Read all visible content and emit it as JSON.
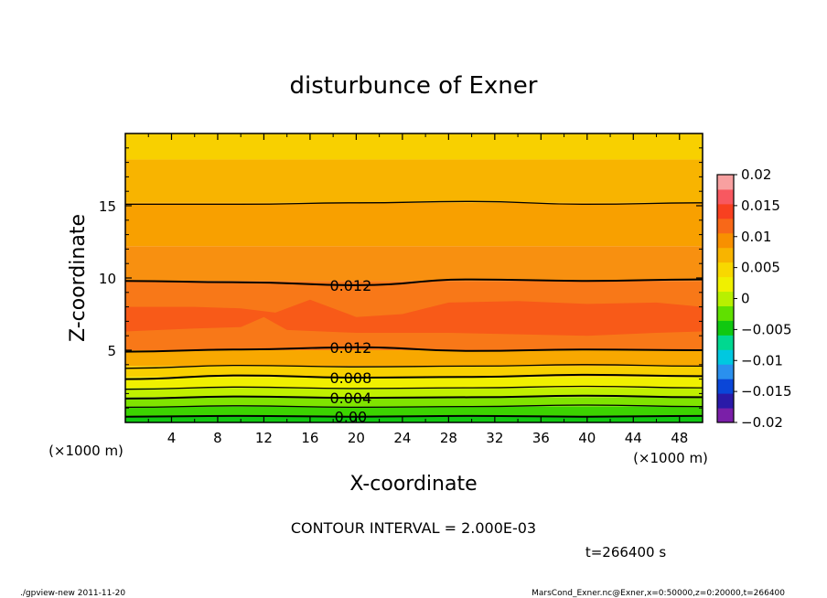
{
  "chart_data": {
    "type": "heatmap",
    "subtype": "filled-contour",
    "title": "disturbunce of Exner",
    "xlabel": "X-coordinate",
    "ylabel": "Z-coordinate",
    "x_unit_note": "(×1000 m)",
    "y_unit_note": "(×1000 m)",
    "xlim": [
      0,
      50
    ],
    "ylim": [
      0,
      20
    ],
    "x_ticks": [
      4,
      8,
      12,
      16,
      20,
      24,
      28,
      32,
      36,
      40,
      44,
      48
    ],
    "y_ticks": [
      5,
      10,
      15
    ],
    "colorbar": {
      "min": -0.02,
      "max": 0.02,
      "tick_values": [
        0.02,
        0.015,
        0.01,
        0.005,
        0,
        -0.005,
        -0.01,
        -0.015,
        -0.02
      ],
      "tick_labels": [
        "0.02",
        "0.015",
        "0.01",
        "0.005",
        "0",
        "−0.005",
        "−0.01",
        "−0.015",
        "−0.02"
      ],
      "placement": "right",
      "colors": [
        "#7a1fa8",
        "#2a1aa8",
        "#0a46d8",
        "#2a90ee",
        "#00c8e0",
        "#00d890",
        "#10c810",
        "#60e000",
        "#b8f000",
        "#f0f000",
        "#f8d800",
        "#f8b400",
        "#f89000",
        "#f86818",
        "#f84020",
        "#f85860",
        "#f8a0a0"
      ]
    },
    "contour_interval_text": "CONTOUR INTERVAL = 2.000E-03",
    "time_text": "t=266400 s",
    "contours": [
      {
        "level": 0.0,
        "label": "0.00",
        "x": [
          0,
          10,
          20,
          30,
          40,
          50
        ],
        "y": [
          0.4,
          0.45,
          0.4,
          0.45,
          0.4,
          0.45
        ]
      },
      {
        "level": 0.002,
        "label": "",
        "x": [
          0,
          10,
          20,
          30,
          40,
          50
        ],
        "y": [
          1.05,
          1.15,
          1.05,
          1.1,
          1.2,
          1.1
        ]
      },
      {
        "level": 0.004,
        "label": "0.004",
        "x": [
          0,
          10,
          20,
          30,
          40,
          50
        ],
        "y": [
          1.65,
          1.8,
          1.7,
          1.75,
          1.85,
          1.75
        ]
      },
      {
        "level": 0.006,
        "label": "",
        "x": [
          0,
          10,
          20,
          30,
          40,
          50
        ],
        "y": [
          2.3,
          2.45,
          2.35,
          2.4,
          2.5,
          2.4
        ]
      },
      {
        "level": 0.008,
        "label": "0.008",
        "x": [
          0,
          10,
          20,
          30,
          40,
          50
        ],
        "y": [
          3.0,
          3.25,
          3.1,
          3.15,
          3.3,
          3.2
        ]
      },
      {
        "level": 0.01,
        "label": "",
        "x": [
          0,
          10,
          20,
          30,
          40,
          50
        ],
        "y": [
          3.75,
          3.95,
          3.85,
          3.9,
          4.0,
          3.9
        ]
      },
      {
        "level": 0.012,
        "label": "0.012",
        "x": [
          0,
          10,
          20,
          30,
          40,
          50
        ],
        "y": [
          4.9,
          5.05,
          5.2,
          4.95,
          5.05,
          5.0
        ]
      },
      {
        "level": 0.012,
        "label": "0.012",
        "x": [
          0,
          10,
          20,
          30,
          40,
          50
        ],
        "y": [
          9.8,
          9.7,
          9.5,
          9.9,
          9.8,
          9.9
        ]
      },
      {
        "level": 0.01,
        "label": "",
        "x": [
          0,
          10,
          20,
          30,
          40,
          50
        ],
        "y": [
          15.1,
          15.1,
          15.2,
          15.3,
          15.1,
          15.2
        ]
      }
    ],
    "bands": [
      {
        "z0": 0.0,
        "z1": 0.4,
        "color": "#10c810"
      },
      {
        "z0": 0.4,
        "z1": 1.1,
        "color": "#3cd400"
      },
      {
        "z0": 1.1,
        "z1": 1.75,
        "color": "#80e400"
      },
      {
        "z0": 1.75,
        "z1": 2.4,
        "color": "#c0f000"
      },
      {
        "z0": 2.4,
        "z1": 3.15,
        "color": "#f0f000"
      },
      {
        "z0": 3.15,
        "z1": 3.9,
        "color": "#f8d000"
      },
      {
        "z0": 3.9,
        "z1": 5.0,
        "color": "#f8a800"
      },
      {
        "z0": 5.0,
        "z1": 9.8,
        "color": "#f87818"
      },
      {
        "z0": 9.8,
        "z1": 12.2,
        "color": "#f89010"
      },
      {
        "z0": 12.2,
        "z1": 15.2,
        "color": "#f8a000"
      },
      {
        "z0": 15.2,
        "z1": 18.2,
        "color": "#f8b400"
      },
      {
        "z0": 18.2,
        "z1": 20.0,
        "color": "#f8d000"
      }
    ],
    "core_color": "#f85a18"
  },
  "footer": {
    "left": "./gpview-new   2011-11-20",
    "right": "MarsCond_Exner.nc@Exner,x=0:50000,z=0:20000,t=266400"
  }
}
